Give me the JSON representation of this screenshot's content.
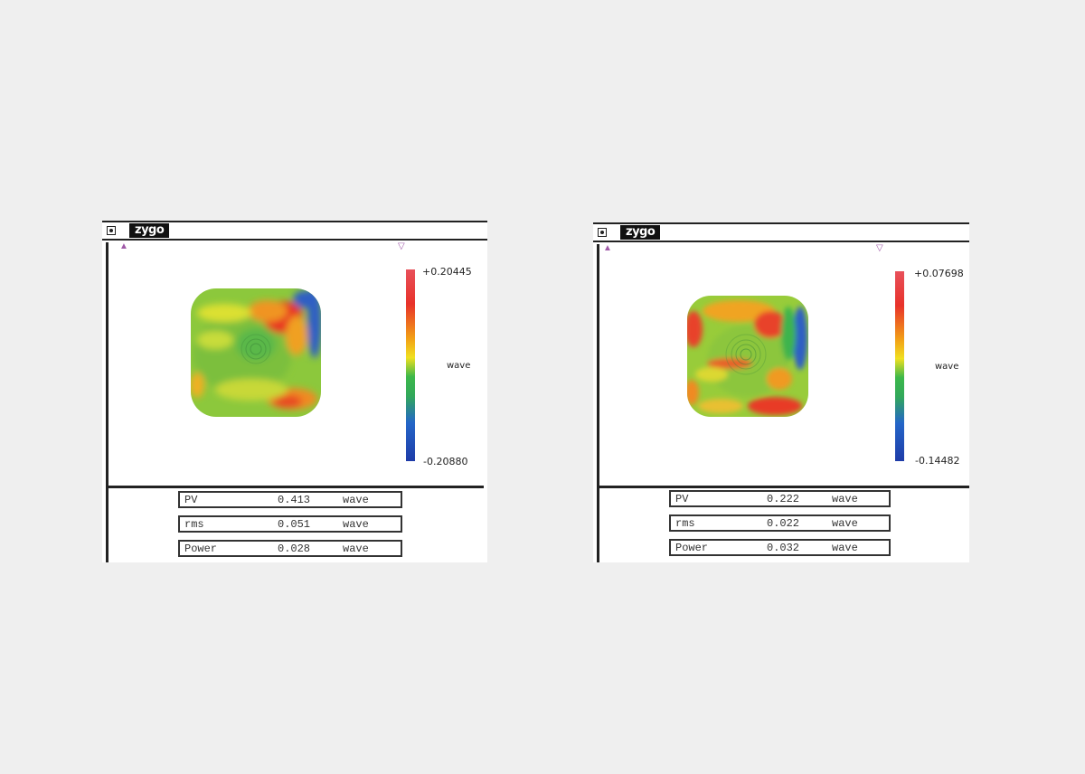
{
  "windows": [
    {
      "brand": "zygo",
      "scale": {
        "max": "+0.20445",
        "min": "-0.20880",
        "unit": "wave"
      },
      "stats": [
        {
          "label": "PV",
          "value": "0.413",
          "unit": "wave"
        },
        {
          "label": "rms",
          "value": "0.051",
          "unit": "wave"
        },
        {
          "label": "Power",
          "value": "0.028",
          "unit": "wave"
        }
      ]
    },
    {
      "brand": "zygo",
      "scale": {
        "max": "+0.07698",
        "min": "-0.14482",
        "unit": "wave"
      },
      "stats": [
        {
          "label": "PV",
          "value": "0.222",
          "unit": "wave"
        },
        {
          "label": "rms",
          "value": "0.022",
          "unit": "wave"
        },
        {
          "label": "Power",
          "value": "0.032",
          "unit": "wave"
        }
      ]
    }
  ]
}
